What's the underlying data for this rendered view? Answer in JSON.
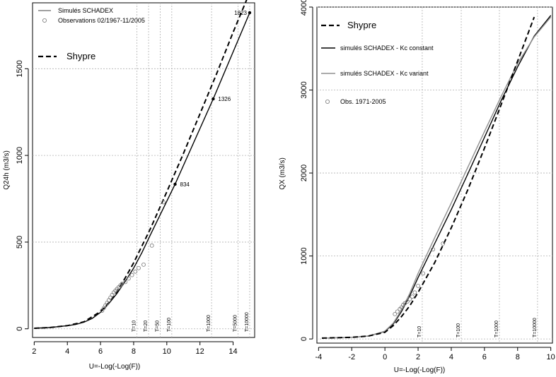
{
  "chart_data": [
    {
      "type": "line",
      "xlabel": "U=-Log(-Log(F))",
      "ylabel": "Q24h (m3/s)",
      "xlim": [
        1.9,
        15.3
      ],
      "ylim": [
        -50,
        1880
      ],
      "xticks": [
        2,
        4,
        6,
        8,
        10,
        12,
        14
      ],
      "yticks": [
        0,
        500,
        1000,
        1500
      ],
      "return_periods": [
        {
          "label": "T=10",
          "x": 8.2
        },
        {
          "label": "T=20",
          "x": 8.9
        },
        {
          "label": "T=50",
          "x": 9.6
        },
        {
          "label": "T=100",
          "x": 10.3
        },
        {
          "label": "T=1000",
          "x": 12.7
        },
        {
          "label": "T=5000",
          "x": 14.3
        },
        {
          "label": "T=10000",
          "x": 15.0
        }
      ],
      "legend": {
        "position": "top-left",
        "entries": [
          {
            "name": "Simulés SCHADEX",
            "style": "solid-grey"
          },
          {
            "name": "Observations 02/1967-11/2005",
            "style": "circle"
          },
          {
            "name": "Shypre",
            "style": "dashed-bold"
          }
        ]
      },
      "series": [
        {
          "name": "Simulés SCHADEX",
          "color": "#000000",
          "style": "solid",
          "x": [
            2.0,
            3.0,
            4.0,
            4.5,
            5.0,
            5.5,
            6.0,
            6.5,
            7.0,
            7.5,
            8.0,
            8.5,
            9.0,
            10.5,
            12.8,
            15.0
          ],
          "y": [
            3,
            8,
            18,
            25,
            38,
            60,
            95,
            145,
            205,
            275,
            350,
            440,
            540,
            834,
            1326,
            1823
          ]
        },
        {
          "name": "Shypre",
          "color": "#000000",
          "style": "dashed",
          "x": [
            2.0,
            3.0,
            4.0,
            5.0,
            6.0,
            6.5,
            7.0,
            7.5,
            8.0,
            9.0,
            10.0,
            11.0,
            12.0,
            13.0,
            14.0,
            15.0
          ],
          "y": [
            3,
            8,
            18,
            40,
            100,
            150,
            215,
            295,
            380,
            575,
            790,
            1010,
            1240,
            1470,
            1710,
            1940
          ]
        },
        {
          "name": "Observations 02/1967-11/2005",
          "color": "#777777",
          "style": "points",
          "x": [
            6.1,
            6.2,
            6.3,
            6.4,
            6.5,
            6.6,
            6.7,
            6.8,
            6.9,
            7.0,
            7.1,
            7.2,
            7.3,
            7.5,
            7.7,
            7.9,
            8.1,
            8.3,
            8.6,
            9.1,
            9.8
          ],
          "y": [
            105,
            120,
            135,
            150,
            165,
            180,
            195,
            210,
            220,
            230,
            240,
            250,
            260,
            270,
            290,
            310,
            330,
            350,
            370,
            480,
            730
          ]
        }
      ],
      "annotations": [
        {
          "text": "834",
          "x": 10.5,
          "y": 834
        },
        {
          "text": "1326",
          "x": 12.8,
          "y": 1326
        },
        {
          "text": "1823",
          "x": 15.0,
          "y": 1823
        }
      ]
    },
    {
      "type": "line",
      "xlabel": "U=-Log(-Log(F))",
      "ylabel": "QX (m3/s)",
      "xlim": [
        -4.1,
        10.1
      ],
      "ylim": [
        -50,
        4000
      ],
      "xticks": [
        -4,
        -2,
        0,
        2,
        4,
        6,
        8,
        10
      ],
      "yticks": [
        0,
        1000,
        2000,
        3000,
        4000
      ],
      "return_periods": [
        {
          "label": "T=10",
          "x": 2.25
        },
        {
          "label": "T=100",
          "x": 4.6
        },
        {
          "label": "T=1000",
          "x": 6.9
        },
        {
          "label": "T=10000",
          "x": 9.2
        }
      ],
      "legend": {
        "position": "top-left",
        "entries": [
          {
            "name": "Shypre",
            "style": "dashed-bold"
          },
          {
            "name": "simulés SCHADEX - Kc constant",
            "style": "solid-black"
          },
          {
            "name": "simulés SCHADEX - Kc variant",
            "style": "solid-grey"
          },
          {
            "name": "Obs. 1971-2005",
            "style": "circle"
          }
        ]
      },
      "series": [
        {
          "name": "simulés SCHADEX - Kc constant",
          "color": "#000000",
          "style": "solid",
          "x": [
            -3.8,
            -2.0,
            -1.0,
            0.0,
            0.5,
            1.0,
            1.5,
            2.0,
            3.0,
            4.0,
            5.0,
            6.0,
            7.0,
            8.0,
            9.0,
            10.0
          ],
          "y": [
            10,
            20,
            35,
            90,
            180,
            330,
            520,
            740,
            1150,
            1560,
            1990,
            2430,
            2870,
            3280,
            3650,
            3900
          ]
        },
        {
          "name": "simulés SCHADEX - Kc variant",
          "color": "#909090",
          "style": "solid",
          "x": [
            -3.8,
            -2.0,
            -1.0,
            0.0,
            0.5,
            1.0,
            1.5,
            2.0,
            3.0,
            4.0,
            5.0,
            6.0,
            7.0,
            8.0,
            9.0,
            10.0
          ],
          "y": [
            10,
            20,
            35,
            95,
            190,
            350,
            550,
            790,
            1220,
            1640,
            2070,
            2500,
            2920,
            3320,
            3640,
            3880
          ]
        },
        {
          "name": "Shypre",
          "color": "#000000",
          "style": "dashed",
          "x": [
            -3.8,
            -2.0,
            -1.0,
            0.0,
            0.5,
            1.0,
            1.5,
            2.0,
            3.0,
            4.0,
            5.0,
            6.0,
            7.0,
            8.0,
            9.0
          ],
          "y": [
            10,
            20,
            35,
            80,
            160,
            270,
            400,
            560,
            920,
            1340,
            1800,
            2300,
            2820,
            3350,
            3880
          ]
        },
        {
          "name": "Obs. 1971-2005",
          "color": "#777777",
          "style": "points",
          "x": [
            0.6,
            0.75,
            0.9,
            1.0,
            1.1,
            1.2,
            1.35,
            1.5,
            1.65,
            1.8,
            2.0,
            2.3,
            2.9,
            3.5
          ],
          "y": [
            300,
            330,
            360,
            380,
            410,
            430,
            450,
            480,
            510,
            560,
            640,
            790,
            1080,
            1150
          ]
        }
      ]
    }
  ]
}
